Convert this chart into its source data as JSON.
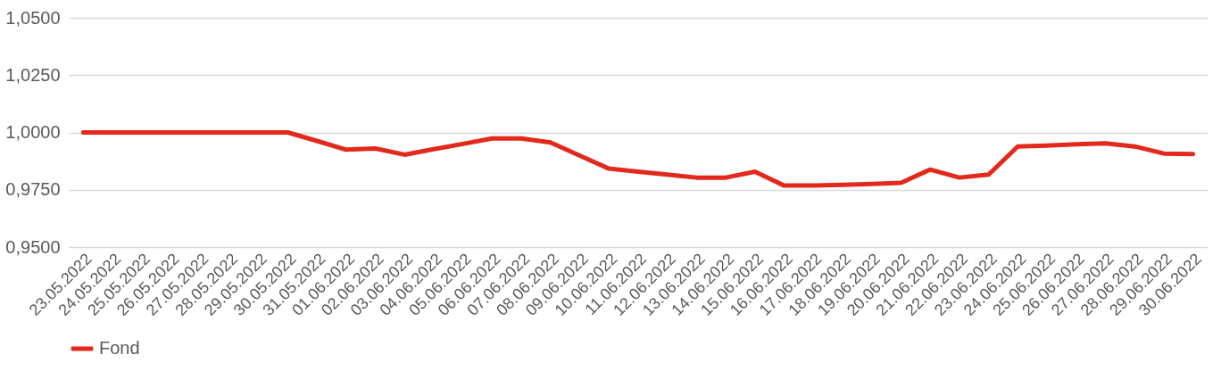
{
  "chart_data": {
    "type": "line",
    "categories": [
      "23.05.2022",
      "24.05.2022",
      "25.05.2022",
      "26.05.2022",
      "27.05.2022",
      "28.05.2022",
      "29.05.2022",
      "30.05.2022",
      "31.05.2022",
      "01.06.2022",
      "02.06.2022",
      "03.06.2022",
      "04.06.2022",
      "05.06.2022",
      "06.06.2022",
      "07.06.2022",
      "08.06.2022",
      "09.06.2022",
      "10.06.2022",
      "11.06.2022",
      "12.06.2022",
      "13.06.2022",
      "14.06.2022",
      "15.06.2022",
      "16.06.2022",
      "17.06.2022",
      "18.06.2022",
      "19.06.2022",
      "20.06.2022",
      "21.06.2022",
      "22.06.2022",
      "23.06.2022",
      "24.06.2022",
      "25.06.2022",
      "26.06.2022",
      "27.06.2022",
      "28.06.2022",
      "29.06.2022",
      "30.06.2022"
    ],
    "series": [
      {
        "name": "Fond",
        "color": "#e3281c",
        "values": [
          1.0,
          1.0,
          1.0,
          1.0,
          1.0,
          1.0,
          1.0,
          1.0,
          0.9963,
          0.9925,
          0.993,
          0.9903,
          0.9927,
          0.995,
          0.9974,
          0.9974,
          0.9956,
          0.9899,
          0.9842,
          0.9829,
          0.9816,
          0.9803,
          0.9803,
          0.9829,
          0.9768,
          0.9768,
          0.9771,
          0.9775,
          0.978,
          0.9838,
          0.9803,
          0.9816,
          0.9939,
          0.9943,
          0.9948,
          0.9952,
          0.9939,
          0.9908,
          0.9906
        ]
      }
    ],
    "ylim": [
      0.95,
      1.05
    ],
    "yticks": [
      {
        "value": 0.95,
        "label": "0,9500"
      },
      {
        "value": 0.975,
        "label": "0,9750"
      },
      {
        "value": 1.0,
        "label": "1,0000"
      },
      {
        "value": 1.025,
        "label": "1,0250"
      },
      {
        "value": 1.05,
        "label": "1,0500"
      }
    ],
    "grid": "y",
    "legend": "bottom",
    "marker": "none",
    "line_style": "solid"
  }
}
